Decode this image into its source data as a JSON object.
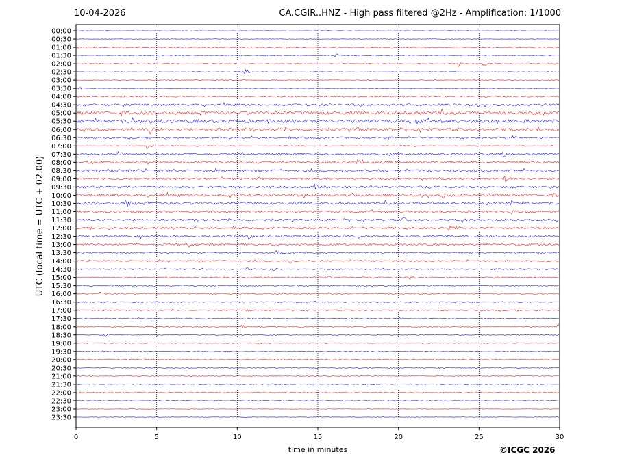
{
  "header": {
    "date": "10-04-2026",
    "title": "CA.CGIR..HNZ - High pass filtered @2Hz - Amplification: 1/1000"
  },
  "footer": {
    "credit": "©ICGC 2026"
  },
  "colors": {
    "red_trace": "#ff0000",
    "blue_trace": "#0000ff",
    "grid": "#000080",
    "axis": "#000000"
  },
  "chart_data": {
    "type": "line",
    "subtype": "helicorder",
    "title": "CA.CGIR..HNZ - High pass filtered @2Hz - Amplification: 1/1000",
    "xlabel": "time in minutes",
    "ylabel": "UTC (local time = UTC + 02:00)",
    "xlim": [
      0,
      30
    ],
    "xticks": [
      0,
      5,
      10,
      15,
      20,
      25,
      30
    ],
    "grid": "vertical dotted lines at 5-minute intervals",
    "row_labels": [
      "00:00",
      "00:30",
      "01:00",
      "01:30",
      "02:00",
      "02:30",
      "03:00",
      "03:30",
      "04:00",
      "04:30",
      "05:00",
      "05:30",
      "06:00",
      "06:30",
      "07:00",
      "07:30",
      "08:00",
      "08:30",
      "09:00",
      "09:30",
      "10:00",
      "10:30",
      "11:00",
      "11:30",
      "12:00",
      "12:30",
      "13:00",
      "13:30",
      "14:00",
      "14:30",
      "15:00",
      "15:30",
      "16:00",
      "16:30",
      "17:00",
      "17:30",
      "18:00",
      "18:30",
      "19:00",
      "19:30",
      "20:00",
      "20:30",
      "21:00",
      "21:30",
      "22:00",
      "22:30",
      "23:00",
      "23:30"
    ],
    "row_colors": [
      "blue",
      "blue",
      "red",
      "blue",
      "red",
      "blue",
      "red",
      "blue",
      "red",
      "blue",
      "red",
      "blue",
      "red",
      "blue",
      "red",
      "blue",
      "red",
      "blue",
      "red",
      "blue",
      "red",
      "blue",
      "red",
      "blue",
      "red",
      "blue",
      "red",
      "blue",
      "red",
      "blue",
      "red",
      "blue",
      "red",
      "blue",
      "red",
      "blue",
      "red",
      "blue",
      "red",
      "blue",
      "red",
      "blue",
      "red",
      "blue",
      "red",
      "blue",
      "red",
      "blue"
    ],
    "row_noise": [
      0.3,
      0.3,
      0.5,
      0.5,
      0.5,
      0.4,
      0.5,
      0.4,
      1.0,
      1.5,
      2.2,
      2.4,
      2.0,
      1.2,
      0.6,
      1.4,
      1.6,
      1.6,
      1.4,
      1.5,
      1.8,
      1.8,
      1.5,
      1.4,
      1.4,
      1.4,
      1.3,
      1.0,
      1.0,
      0.9,
      0.8,
      0.8,
      0.8,
      0.8,
      0.8,
      0.6,
      0.7,
      0.6,
      0.5,
      0.5,
      0.5,
      0.5,
      0.5,
      0.5,
      0.4,
      0.4,
      0.3,
      0.3
    ],
    "events": [
      {
        "row": 2,
        "t": 28.1,
        "amp": 3
      },
      {
        "row": 3,
        "t": 16.1,
        "amp": 4
      },
      {
        "row": 4,
        "t": 23.7,
        "amp": 5
      },
      {
        "row": 4,
        "t": 25.2,
        "amp": 6
      },
      {
        "row": 5,
        "t": 10.5,
        "amp": 5
      },
      {
        "row": 7,
        "t": 0.2,
        "amp": 2
      },
      {
        "row": 10,
        "t": 2.8,
        "amp": 3
      },
      {
        "row": 10,
        "t": 22.4,
        "amp": 3
      },
      {
        "row": 11,
        "t": 3.4,
        "amp": 6
      },
      {
        "row": 11,
        "t": 21.1,
        "amp": 5
      },
      {
        "row": 12,
        "t": 4.6,
        "amp": 7
      },
      {
        "row": 12,
        "t": 17.5,
        "amp": 4
      },
      {
        "row": 12,
        "t": 28.7,
        "amp": 3
      },
      {
        "row": 13,
        "t": 19.3,
        "amp": 3
      },
      {
        "row": 14,
        "t": 4.4,
        "amp": 5
      },
      {
        "row": 15,
        "t": 2.6,
        "amp": 4
      },
      {
        "row": 15,
        "t": 26.5,
        "amp": 5
      },
      {
        "row": 16,
        "t": 17.4,
        "amp": 5
      },
      {
        "row": 18,
        "t": 26.6,
        "amp": 4
      },
      {
        "row": 19,
        "t": 14.8,
        "amp": 4
      },
      {
        "row": 20,
        "t": 9.5,
        "amp": 4
      },
      {
        "row": 20,
        "t": 22.8,
        "amp": 4
      },
      {
        "row": 20,
        "t": 29.6,
        "amp": 3
      },
      {
        "row": 21,
        "t": 3.1,
        "amp": 8
      },
      {
        "row": 21,
        "t": 27.0,
        "amp": 5
      },
      {
        "row": 22,
        "t": 26.9,
        "amp": 4
      },
      {
        "row": 23,
        "t": 20.3,
        "amp": 4
      },
      {
        "row": 23,
        "t": 23.9,
        "amp": 4
      },
      {
        "row": 24,
        "t": 23.1,
        "amp": 4
      },
      {
        "row": 25,
        "t": 10.7,
        "amp": 4
      },
      {
        "row": 26,
        "t": 7.0,
        "amp": 4
      },
      {
        "row": 26,
        "t": 29.6,
        "amp": 3
      },
      {
        "row": 27,
        "t": 12.4,
        "amp": 4
      },
      {
        "row": 28,
        "t": 13.3,
        "amp": 4
      },
      {
        "row": 29,
        "t": 12.2,
        "amp": 4
      },
      {
        "row": 29,
        "t": 10.6,
        "amp": 3
      },
      {
        "row": 30,
        "t": 15.6,
        "amp": 3
      },
      {
        "row": 30,
        "t": 20.7,
        "amp": 3
      },
      {
        "row": 31,
        "t": 4.7,
        "amp": 3
      },
      {
        "row": 32,
        "t": 1.5,
        "amp": 3
      },
      {
        "row": 33,
        "t": 30.0,
        "amp": 4
      },
      {
        "row": 34,
        "t": 10.6,
        "amp": 3
      },
      {
        "row": 36,
        "t": 10.3,
        "amp": 3
      },
      {
        "row": 36,
        "t": 29.9,
        "amp": 5
      },
      {
        "row": 37,
        "t": 1.7,
        "amp": 5
      },
      {
        "row": 41,
        "t": 22.3,
        "amp": 2
      }
    ]
  }
}
